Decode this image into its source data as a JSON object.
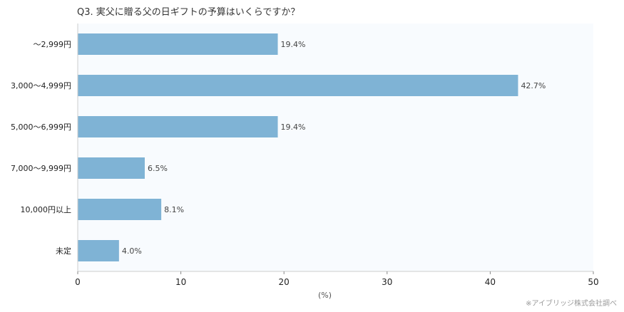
{
  "title": "Q3. 実父に贈る父の日ギフトの予算はいくらですか？",
  "source": "※アイブリッジ株式会社調べ",
  "colors": {
    "bar": "#7fb3d5",
    "plot_bg": "#f8fbfe",
    "axis": "#cccccc"
  },
  "chart_data": {
    "type": "bar",
    "orientation": "horizontal",
    "categories": [
      "〜2,999円",
      "3,000〜4,999円",
      "5,000〜6,999円",
      "7,000〜9,999円",
      "10,000円以上",
      "未定"
    ],
    "values": [
      19.4,
      42.7,
      19.4,
      6.5,
      8.1,
      4.0
    ],
    "value_labels": [
      "19.4%",
      "42.7%",
      "19.4%",
      "6.5%",
      "8.1%",
      "4.0%"
    ],
    "xlabel": "(%)",
    "xlim": [
      0,
      50
    ],
    "xticks": [
      0,
      10,
      20,
      30,
      40,
      50
    ],
    "grid": false
  }
}
